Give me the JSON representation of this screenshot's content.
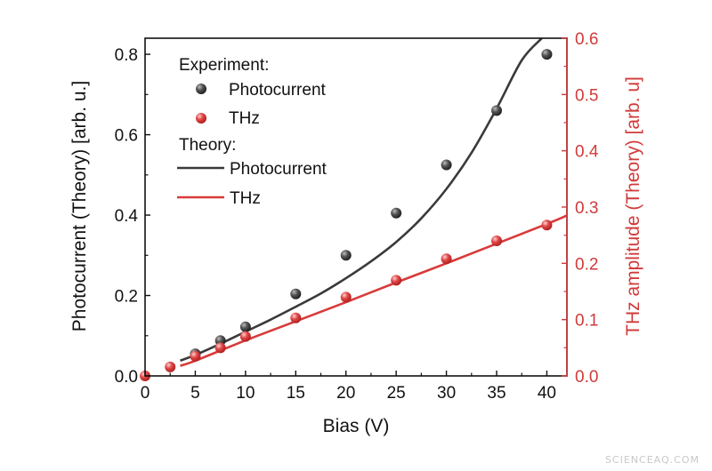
{
  "chart_data": {
    "type": "scatter",
    "xlabel": "Bias (V)",
    "ylabel": "Photocurrent (Theory) [arb. u.]",
    "y2label": "THz amplitude (Theory) [arb. u]",
    "xlim": [
      0,
      42
    ],
    "ylim": [
      0,
      0.84
    ],
    "y2lim": [
      0,
      0.6
    ],
    "x_ticks": [
      0,
      5,
      10,
      15,
      20,
      25,
      30,
      35,
      40
    ],
    "y_ticks": [
      0.0,
      0.2,
      0.4,
      0.6,
      0.8
    ],
    "y_tick_labels": [
      "0.0",
      "0.2",
      "0.4",
      "0.6",
      "0.8"
    ],
    "y2_ticks": [
      0.0,
      0.1,
      0.2,
      0.3,
      0.4,
      0.5,
      0.6
    ],
    "y2_tick_labels": [
      "0.0",
      "0.1",
      "0.2",
      "0.3",
      "0.4",
      "0.5",
      "0.6"
    ],
    "legend": {
      "placement": "top-left",
      "experiment_header": "Experiment:",
      "theory_header": "Theory:",
      "entries": [
        "Photocurrent",
        "THz",
        "Photocurrent",
        "THz"
      ]
    },
    "colors": {
      "photocurrent": "#3a3a3a",
      "thz": "#d93a3a",
      "right_axis": "#d03a3a"
    },
    "series": [
      {
        "name": "Photocurrent",
        "kind": "experiment",
        "axis": "left",
        "x": [
          5,
          7.5,
          10,
          15,
          20,
          25,
          30,
          35,
          40
        ],
        "y": [
          0.055,
          0.088,
          0.122,
          0.204,
          0.3,
          0.405,
          0.525,
          0.66,
          0.8
        ]
      },
      {
        "name": "THz",
        "kind": "experiment",
        "axis": "right",
        "x": [
          0,
          2.5,
          5,
          7.5,
          10,
          15,
          20,
          25,
          30,
          35,
          40
        ],
        "y": [
          0.0,
          0.016,
          0.035,
          0.05,
          0.07,
          0.103,
          0.14,
          0.17,
          0.208,
          0.24,
          0.268
        ]
      },
      {
        "name": "Photocurrent",
        "kind": "theory",
        "axis": "left",
        "x": [
          3.5,
          5,
          7.5,
          10,
          12.5,
          15,
          17.5,
          20,
          22.5,
          25,
          27.5,
          30,
          32.5,
          35,
          37.5,
          39.5
        ],
        "y": [
          0.038,
          0.052,
          0.08,
          0.11,
          0.14,
          0.172,
          0.205,
          0.243,
          0.285,
          0.333,
          0.392,
          0.465,
          0.555,
          0.665,
          0.785,
          0.84
        ]
      },
      {
        "name": "THz",
        "kind": "theory",
        "axis": "right",
        "x": [
          3.5,
          5,
          10,
          15,
          20,
          25,
          30,
          35,
          40,
          42
        ],
        "y": [
          0.018,
          0.027,
          0.063,
          0.097,
          0.131,
          0.166,
          0.2,
          0.235,
          0.27,
          0.285
        ]
      }
    ]
  },
  "watermark": "SCIENCEAQ.COM"
}
